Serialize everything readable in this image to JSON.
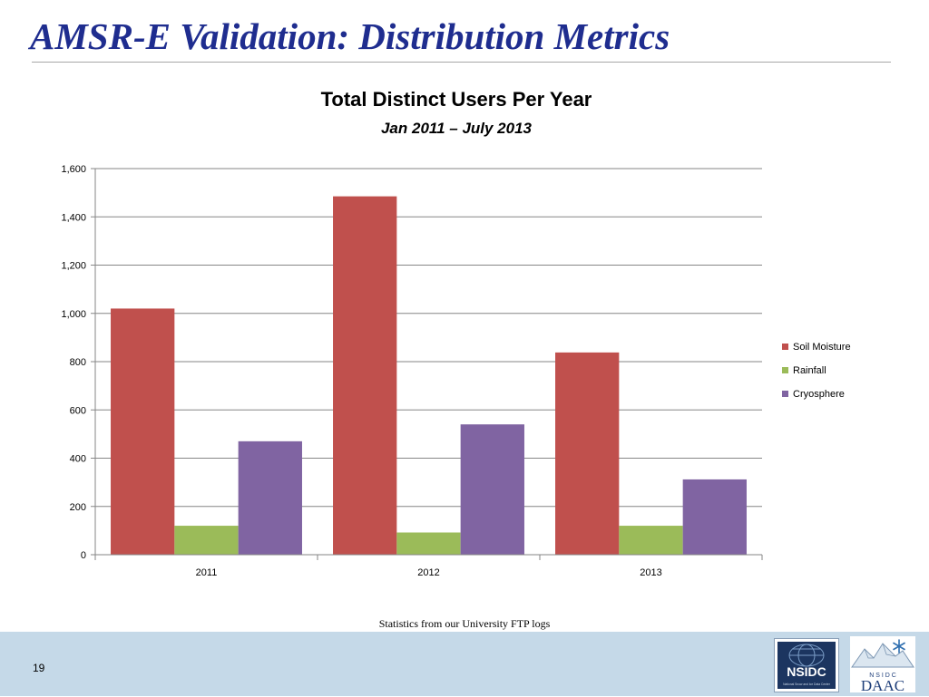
{
  "slide": {
    "title": "AMSR-E Validation: Distribution Metrics",
    "source_note": "Statistics from our University FTP logs",
    "slide_number": "19"
  },
  "logos": {
    "nsidc": {
      "wordmark": "NSIDC",
      "tagline": "National Snow and Ice Data Center"
    },
    "daac": {
      "top": "N S I D C",
      "bottom": "DAAC"
    }
  },
  "colors": {
    "soil_moisture": "#c0504d",
    "rainfall": "#9bbb59",
    "cryosphere": "#8064a2",
    "title": "#1f2d8f",
    "footer": "#c5d9e8",
    "grid": "#868686"
  },
  "chart_data": {
    "type": "bar",
    "title": "Total Distinct Users Per Year",
    "subtitle": "Jan 2011 – July 2013",
    "categories": [
      "2011",
      "2012",
      "2013"
    ],
    "series": [
      {
        "name": "Soil Moisture",
        "values": [
          1020,
          1485,
          838
        ]
      },
      {
        "name": "Rainfall",
        "values": [
          120,
          92,
          120
        ]
      },
      {
        "name": "Cryosphere",
        "values": [
          470,
          540,
          312
        ]
      }
    ],
    "ylim": [
      0,
      1600
    ],
    "yticks": [
      "0",
      "200",
      "400",
      "600",
      "800",
      "1,000",
      "1,200",
      "1,400",
      "1,600"
    ],
    "grid": true,
    "legend": "right"
  }
}
